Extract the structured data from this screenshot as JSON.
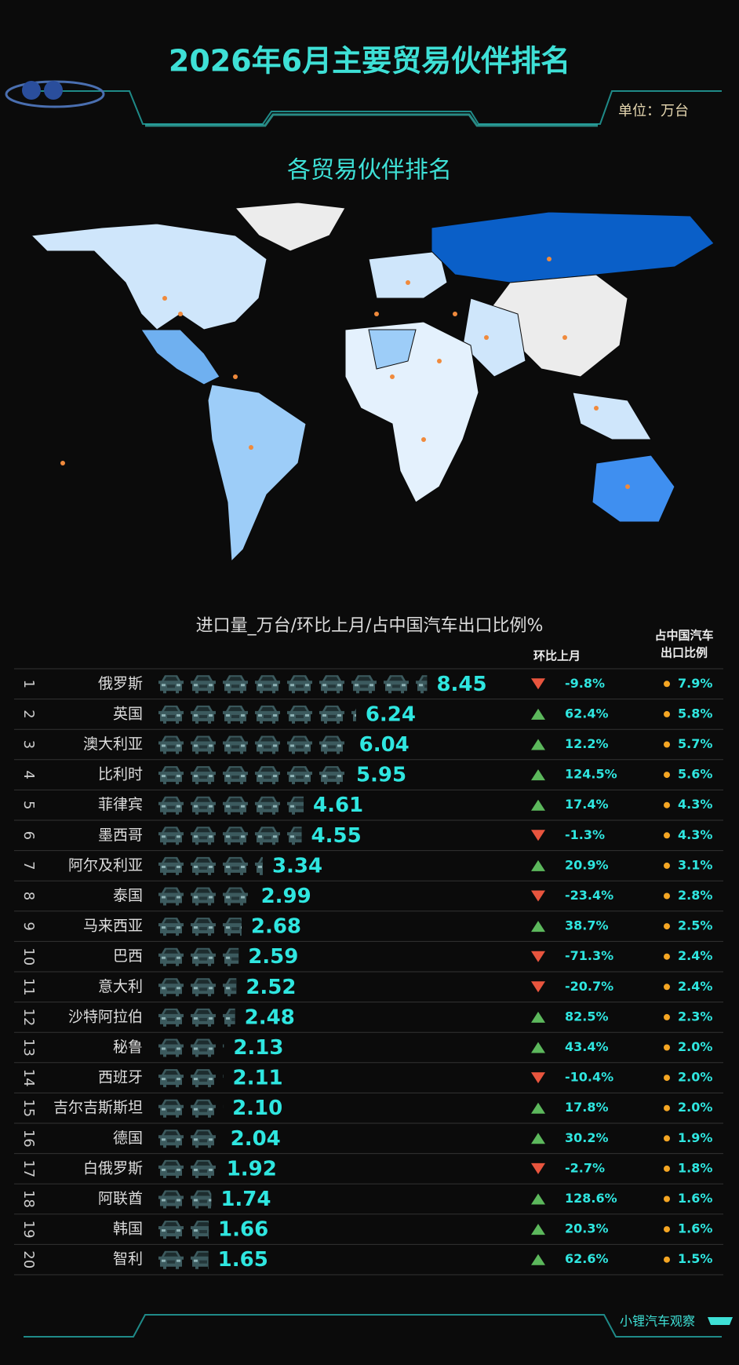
{
  "title": "2026年6月主要贸易伙伴排名",
  "unit": "单位：万台",
  "map_title": "各贸易伙伴排名",
  "footer": "小锂汽车观察",
  "chart_data": {
    "type": "pictogram-bar",
    "title": "进口量_万台/环比上月/占中国汽车出口比例%",
    "ranks": [
      1,
      2,
      3,
      4,
      5,
      6,
      7,
      8,
      9,
      10,
      11,
      12,
      13,
      14,
      15,
      16,
      17,
      18,
      19,
      20
    ],
    "categories": [
      "俄罗斯",
      "英国",
      "澳大利亚",
      "比利时",
      "菲律宾",
      "墨西哥",
      "阿尔及利亚",
      "泰国",
      "马来西亚",
      "巴西",
      "意大利",
      "沙特阿拉伯",
      "秘鲁",
      "西班牙",
      "吉尔吉斯斯坦",
      "德国",
      "白俄罗斯",
      "阿联酋",
      "韩国",
      "智利"
    ],
    "values": [
      8.45,
      6.24,
      6.04,
      5.95,
      4.61,
      4.55,
      3.34,
      2.99,
      2.68,
      2.59,
      2.52,
      2.48,
      2.13,
      2.11,
      2.1,
      2.04,
      1.92,
      1.74,
      1.66,
      1.65
    ],
    "value_labels": [
      "8.45",
      "6.24",
      "6.04",
      "5.95",
      "4.61",
      "4.55",
      "3.34",
      "2.99",
      "2.68",
      "2.59",
      "2.52",
      "2.48",
      "2.13",
      "2.11",
      "2.10",
      "2.04",
      "1.92",
      "1.74",
      "1.66",
      "1.65"
    ],
    "color": "#3c5a5e",
    "mom": {
      "header": "环比上月",
      "values": [
        -9.8,
        62.4,
        12.2,
        124.5,
        17.4,
        -1.3,
        20.9,
        -23.4,
        38.7,
        -71.3,
        -20.7,
        82.5,
        43.4,
        -10.4,
        17.8,
        30.2,
        -2.7,
        128.6,
        20.3,
        62.6
      ],
      "value_labels": [
        "-9.8%",
        "62.4%",
        "12.2%",
        "124.5%",
        "17.4%",
        "-1.3%",
        "20.9%",
        "-23.4%",
        "38.7%",
        "-71.3%",
        "-20.7%",
        "82.5%",
        "43.4%",
        "-10.4%",
        "17.8%",
        "30.2%",
        "-2.7%",
        "128.6%",
        "20.3%",
        "62.6%"
      ],
      "up_color": "#5cb85c",
      "down_color": "#e8553e"
    },
    "share": {
      "header": [
        "占中国汽车",
        "出口比例"
      ],
      "values": [
        7.9,
        5.8,
        5.7,
        5.6,
        4.3,
        4.3,
        3.1,
        2.8,
        2.5,
        2.4,
        2.4,
        2.3,
        2.0,
        2.0,
        2.0,
        1.9,
        1.8,
        1.6,
        1.6,
        1.5
      ],
      "value_labels": [
        "7.9%",
        "5.8%",
        "5.7%",
        "5.6%",
        "4.3%",
        "4.3%",
        "3.1%",
        "2.8%",
        "2.5%",
        "2.4%",
        "2.4%",
        "2.3%",
        "2.0%",
        "2.0%",
        "2.0%",
        "1.9%",
        "1.8%",
        "1.6%",
        "1.6%",
        "1.5%"
      ],
      "dot_color": "#f5a623"
    }
  }
}
